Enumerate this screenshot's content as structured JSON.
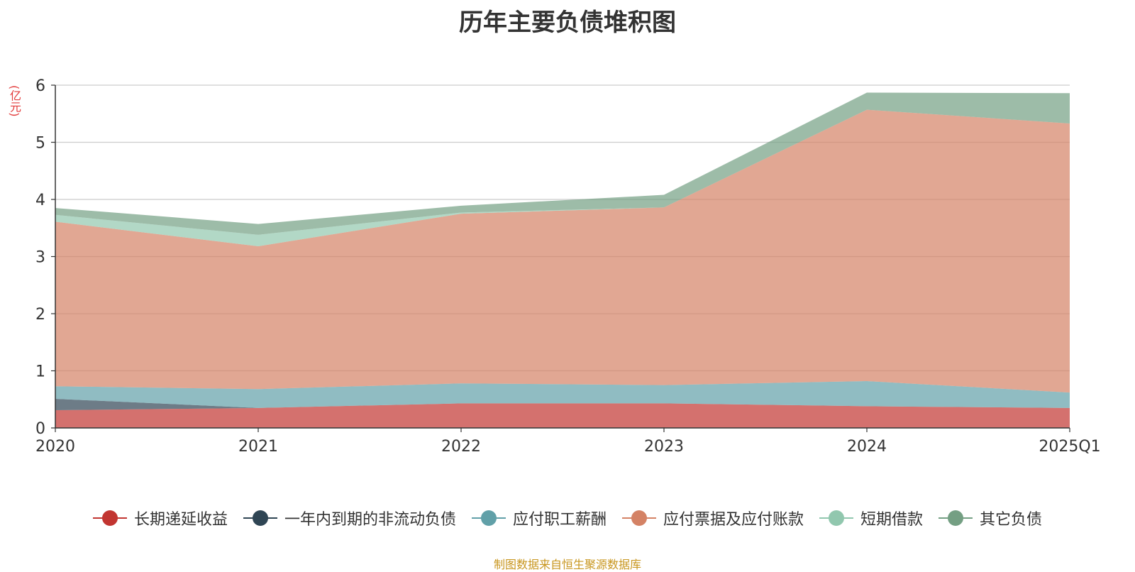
{
  "chart_data": {
    "type": "area",
    "stacked": true,
    "title": "历年主要负债堆积图",
    "unit_label": "(亿元)",
    "categories": [
      "2020",
      "2021",
      "2022",
      "2023",
      "2024",
      "2025Q1"
    ],
    "ylim": [
      0,
      6
    ],
    "yticks": [
      "0",
      "1",
      "2",
      "3",
      "4",
      "5",
      "6"
    ],
    "grid": true,
    "legend_position": "bottom",
    "series": [
      {
        "name": "长期递延收益",
        "color": "#c23531",
        "values": [
          0.31,
          0.35,
          0.43,
          0.43,
          0.38,
          0.35
        ]
      },
      {
        "name": "一年内到期的非流动负债",
        "color": "#2f4554",
        "values": [
          0.2,
          0.0,
          0.0,
          0.0,
          0.0,
          0.0
        ]
      },
      {
        "name": "应付职工薪酬",
        "color": "#61a0a8",
        "values": [
          0.22,
          0.33,
          0.35,
          0.32,
          0.44,
          0.27
        ]
      },
      {
        "name": "应付票据及应付账款",
        "color": "#d48265",
        "values": [
          2.88,
          2.5,
          2.97,
          3.11,
          4.75,
          4.71
        ]
      },
      {
        "name": "短期借款",
        "color": "#91c7ae",
        "values": [
          0.12,
          0.2,
          0.02,
          0.0,
          0.0,
          0.0
        ]
      },
      {
        "name": "其它负债",
        "color": "#749f83",
        "values": [
          0.12,
          0.19,
          0.12,
          0.22,
          0.3,
          0.53
        ]
      }
    ]
  },
  "source_note": "制图数据来自恒生聚源数据库"
}
